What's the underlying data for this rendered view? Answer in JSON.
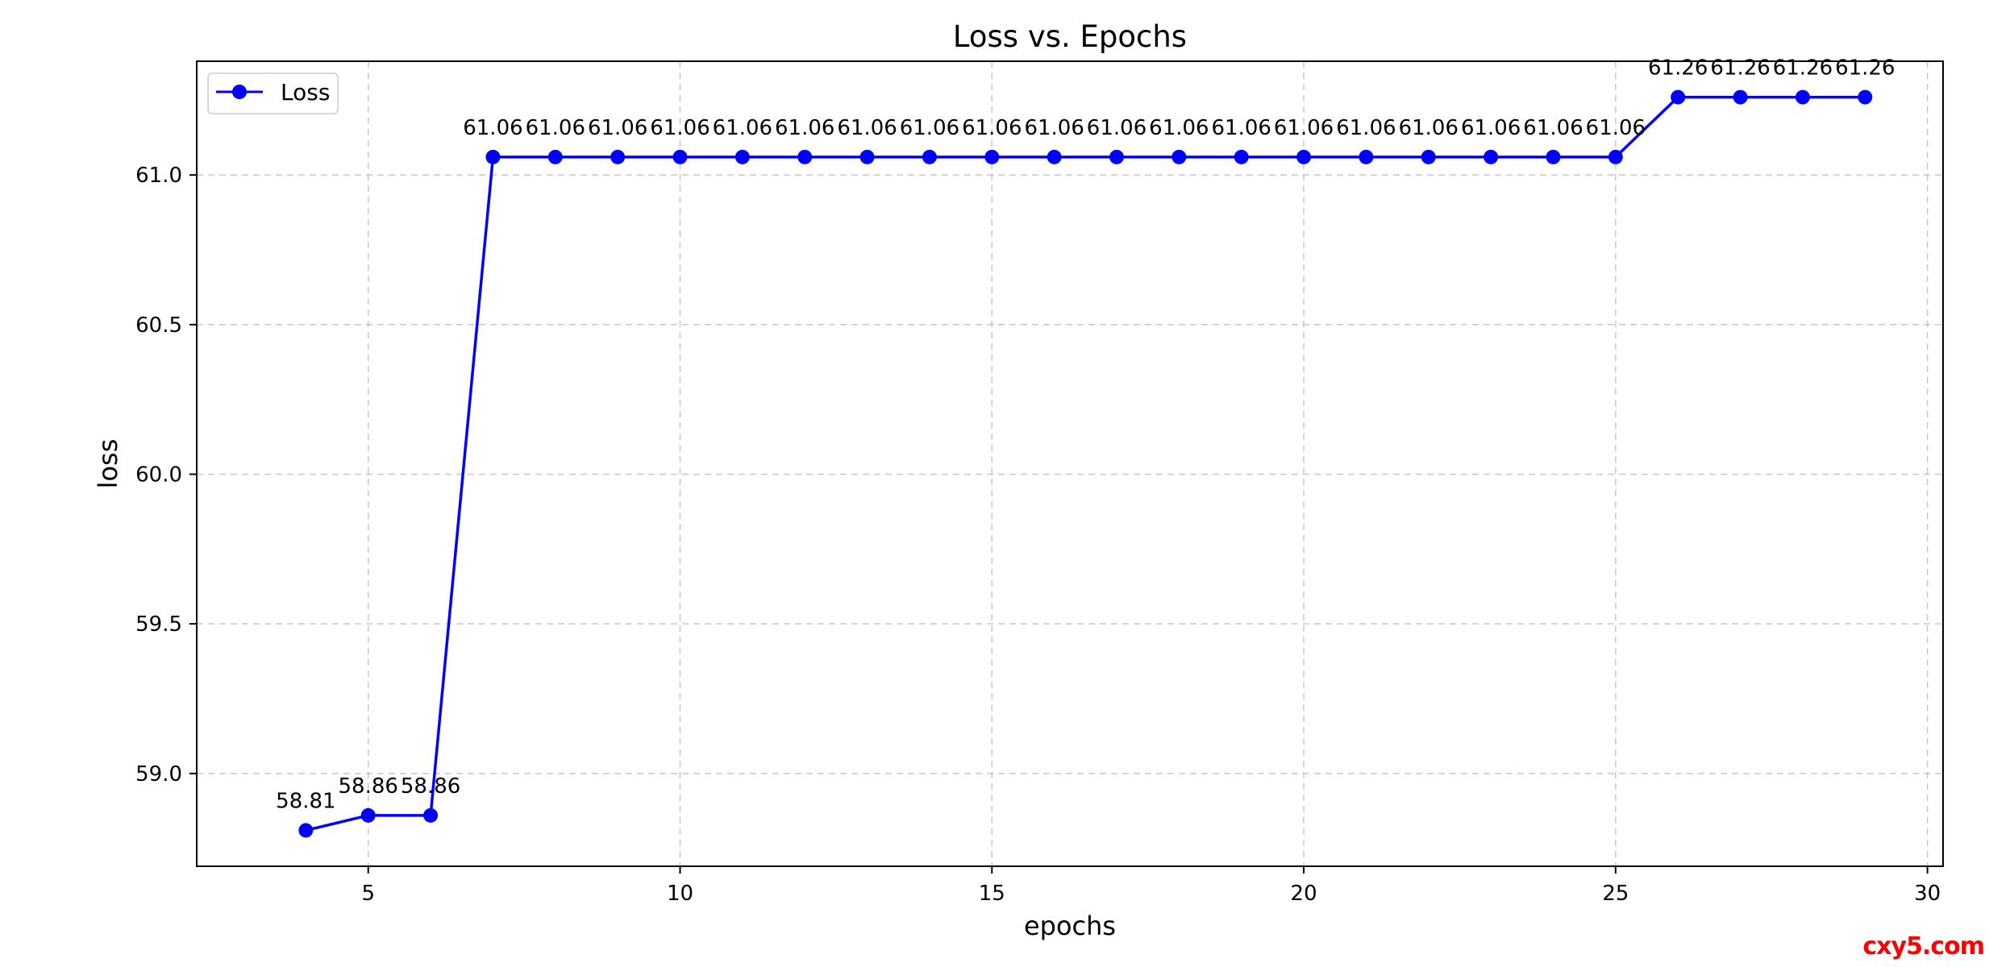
{
  "chart_data": {
    "type": "line",
    "title": "Loss vs. Epochs",
    "xlabel": "epochs",
    "ylabel": "loss",
    "xlim": [
      2.25,
      30.25
    ],
    "ylim": [
      58.69,
      61.38
    ],
    "xticks": [
      5,
      10,
      15,
      20,
      25,
      30
    ],
    "yticks": [
      59.0,
      59.5,
      60.0,
      60.5,
      61.0
    ],
    "grid": true,
    "grid_style": "dashed",
    "legend_position": "upper-left",
    "series": [
      {
        "name": "Loss",
        "color": "#0000ff",
        "marker": "circle",
        "x": [
          4,
          5,
          6,
          7,
          8,
          9,
          10,
          11,
          12,
          13,
          14,
          15,
          16,
          17,
          18,
          19,
          20,
          21,
          22,
          23,
          24,
          25,
          26,
          27,
          28,
          29
        ],
        "y": [
          58.81,
          58.86,
          58.86,
          61.06,
          61.06,
          61.06,
          61.06,
          61.06,
          61.06,
          61.06,
          61.06,
          61.06,
          61.06,
          61.06,
          61.06,
          61.06,
          61.06,
          61.06,
          61.06,
          61.06,
          61.06,
          61.06,
          61.26,
          61.26,
          61.26,
          61.26
        ],
        "labels": [
          "58.81",
          "58.86",
          "58.86",
          "61.06",
          "61.06",
          "61.06",
          "61.06",
          "61.06",
          "61.06",
          "61.06",
          "61.06",
          "61.06",
          "61.06",
          "61.06",
          "61.06",
          "61.06",
          "61.06",
          "61.06",
          "61.06",
          "61.06",
          "61.06",
          "61.06",
          "61.26",
          "61.26",
          "61.26",
          "61.26"
        ]
      }
    ]
  },
  "watermark": "cxy5.com"
}
